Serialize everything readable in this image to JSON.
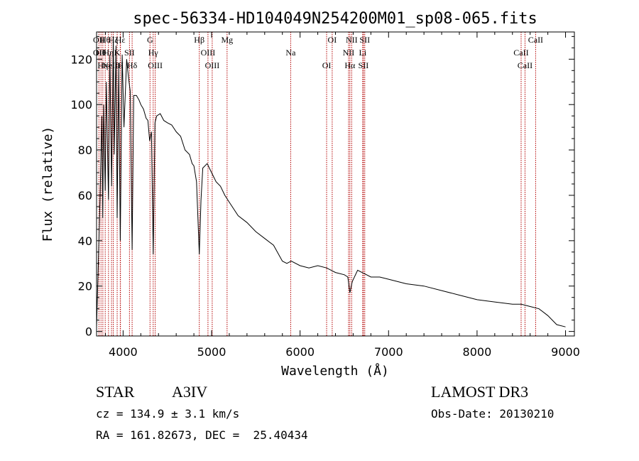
{
  "chart_data": {
    "type": "line",
    "title": "spec-56334-HD104049N254200M01_sp08-065.fits",
    "xlabel": "Wavelength (Å)",
    "ylabel": "Flux (relative)",
    "xlim": [
      3700,
      9100
    ],
    "ylim": [
      -2,
      132
    ],
    "xticks": [
      4000,
      5000,
      6000,
      7000,
      8000,
      9000
    ],
    "xtick_labels": [
      "4000",
      "5000",
      "6000",
      "7000",
      "8000",
      "9000"
    ],
    "yticks": [
      0,
      20,
      40,
      60,
      80,
      100,
      120
    ],
    "ytick_labels": [
      "0",
      "20",
      "40",
      "60",
      "80",
      "100",
      "120"
    ],
    "grid": false,
    "series": [
      {
        "name": "spectrum",
        "x": [
          3700,
          3720,
          3740,
          3760,
          3770,
          3780,
          3798,
          3810,
          3835,
          3850,
          3870,
          3889,
          3900,
          3920,
          3933,
          3950,
          3968,
          3990,
          4010,
          4040,
          4060,
          4080,
          4102,
          4120,
          4150,
          4180,
          4200,
          4230,
          4260,
          4280,
          4300,
          4320,
          4340,
          4360,
          4380,
          4420,
          4460,
          4500,
          4550,
          4600,
          4650,
          4700,
          4750,
          4780,
          4800,
          4830,
          4861,
          4880,
          4900,
          4950,
          5000,
          5050,
          5100,
          5150,
          5200,
          5300,
          5400,
          5500,
          5600,
          5700,
          5800,
          5850,
          5900,
          6000,
          6100,
          6200,
          6300,
          6400,
          6500,
          6540,
          6563,
          6590,
          6650,
          6700,
          6800,
          6900,
          7000,
          7200,
          7400,
          7600,
          7800,
          8000,
          8200,
          8400,
          8500,
          8600,
          8700,
          8800,
          8900,
          9000
        ],
        "y": [
          2,
          30,
          60,
          95,
          50,
          100,
          62,
          110,
          58,
          122,
          64,
          130,
          78,
          126,
          50,
          116,
          40,
          122,
          90,
          120,
          112,
          106,
          36,
          104,
          104,
          102,
          100,
          98,
          94,
          93,
          84,
          88,
          34,
          92,
          95,
          96,
          93,
          92,
          91,
          88,
          86,
          80,
          78,
          74,
          73,
          66,
          34,
          58,
          72,
          74,
          70,
          66,
          64,
          60,
          57,
          51,
          48,
          44,
          41,
          38,
          31,
          30,
          31,
          29,
          28,
          29,
          28,
          26,
          25,
          24,
          17,
          22,
          27,
          26,
          24,
          24,
          23,
          21,
          20,
          18,
          16,
          14,
          13,
          12,
          12,
          11,
          10,
          7,
          3,
          2
        ]
      }
    ],
    "line_annotations": [
      {
        "wavelength": 3727,
        "labels": [
          "OII",
          "OII"
        ]
      },
      {
        "wavelength": 3750,
        "labels": [
          "Hθ"
        ]
      },
      {
        "wavelength": 3771,
        "labels": [
          "Hη"
        ]
      },
      {
        "wavelength": 3798,
        "labels": [
          "Hθ"
        ]
      },
      {
        "wavelength": 3835,
        "labels": [
          "Hη"
        ]
      },
      {
        "wavelength": 3869,
        "labels": [
          "NeIII"
        ]
      },
      {
        "wavelength": 3889,
        "labels": [
          "Hζ"
        ]
      },
      {
        "wavelength": 3933,
        "labels": [
          "K"
        ]
      },
      {
        "wavelength": 3968,
        "labels": [
          "H"
        ]
      },
      {
        "wavelength": 3970,
        "labels": [
          "Hε"
        ]
      },
      {
        "wavelength": 4072,
        "labels": [
          "SII"
        ]
      },
      {
        "wavelength": 4102,
        "labels": [
          "Hδ"
        ]
      },
      {
        "wavelength": 4304,
        "labels": [
          "G"
        ]
      },
      {
        "wavelength": 4340,
        "labels": [
          "Hγ"
        ]
      },
      {
        "wavelength": 4363,
        "labels": [
          "OIII"
        ]
      },
      {
        "wavelength": 4861,
        "labels": [
          "Hβ"
        ]
      },
      {
        "wavelength": 4959,
        "labels": [
          "OIII"
        ]
      },
      {
        "wavelength": 5007,
        "labels": [
          "OIII"
        ]
      },
      {
        "wavelength": 5175,
        "labels": [
          "Mg"
        ]
      },
      {
        "wavelength": 5894,
        "labels": [
          "Na"
        ]
      },
      {
        "wavelength": 6300,
        "labels": [
          "OI"
        ]
      },
      {
        "wavelength": 6363,
        "labels": [
          "OI"
        ]
      },
      {
        "wavelength": 6548,
        "labels": [
          "NII"
        ]
      },
      {
        "wavelength": 6563,
        "labels": [
          "Hα"
        ]
      },
      {
        "wavelength": 6583,
        "labels": [
          "NII"
        ]
      },
      {
        "wavelength": 6708,
        "labels": [
          "Li"
        ]
      },
      {
        "wavelength": 6716,
        "labels": [
          "SII"
        ]
      },
      {
        "wavelength": 6731,
        "labels": [
          "SII"
        ]
      },
      {
        "wavelength": 8498,
        "labels": [
          "CaII"
        ]
      },
      {
        "wavelength": 8542,
        "labels": [
          "CaII"
        ]
      },
      {
        "wavelength": 8662,
        "labels": [
          "CaII"
        ]
      }
    ]
  },
  "info": {
    "object_class": "STAR",
    "subclass": "A3IV",
    "survey": "LAMOST DR3",
    "cz": "cz = 134.9 ± 3.1 km/s",
    "obs_date": "Obs-Date: 20130210",
    "radec": "RA = 161.82673, DEC =  25.40434"
  },
  "colors": {
    "spectrum": "#000000",
    "line_marker": "#b30000",
    "axes": "#000000"
  }
}
